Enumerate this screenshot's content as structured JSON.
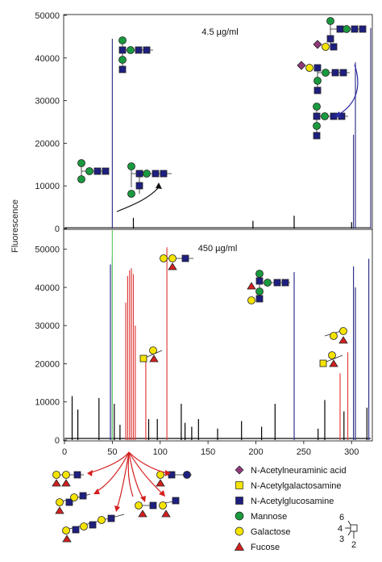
{
  "chart_data": [
    {
      "type": "bar",
      "panel": "top",
      "annotation": "4.5 µg/ml",
      "ylabel": "Fluorescence",
      "ylim": [
        0,
        50000
      ],
      "y_ticks": [
        0,
        10000,
        20000,
        30000,
        40000,
        50000
      ],
      "xlim": [
        0,
        320
      ],
      "grid": false,
      "series": [
        {
          "name": "",
          "color": "#3a3a8a",
          "x": [
            50,
            302,
            304,
            320
          ],
          "y": [
            44500,
            22000,
            39000,
            47000
          ]
        },
        {
          "name": "",
          "color": "#000000",
          "x": [
            72,
            197,
            240,
            300
          ],
          "y": [
            2500,
            1800,
            3000,
            1500
          ]
        }
      ]
    },
    {
      "type": "bar",
      "panel": "bottom",
      "annotation": "450 µg/ml",
      "ylabel": "Fluorescence",
      "ylim": [
        0,
        55000
      ],
      "y_ticks": [
        0,
        10000,
        20000,
        30000,
        40000,
        50000
      ],
      "xlim": [
        0,
        320
      ],
      "x_ticks": [
        0,
        50,
        100,
        150,
        200,
        250,
        300
      ],
      "grid": false,
      "series": [
        {
          "name": "",
          "color": "#33338a",
          "x": [
            48,
            50,
            240,
            302,
            304,
            318
          ],
          "y": [
            46000,
            48000,
            44000,
            45500,
            40000,
            47500
          ]
        },
        {
          "name": "",
          "color": "#e04040",
          "x": [
            64,
            66,
            68,
            70,
            72,
            74,
            85,
            107,
            288,
            296
          ],
          "y": [
            36000,
            43000,
            44500,
            45000,
            43500,
            30000,
            21000,
            50500,
            17500,
            23000
          ]
        },
        {
          "name": "",
          "color": "#66cc66",
          "x": [
            50
          ],
          "y": [
            55000
          ]
        },
        {
          "name": "",
          "color": "#000000",
          "x": [
            8,
            14,
            36,
            52,
            58,
            88,
            97,
            122,
            126,
            133,
            140,
            160,
            185,
            206,
            220,
            265,
            272,
            292,
            316
          ],
          "y": [
            11500,
            8000,
            11000,
            9500,
            4000,
            5500,
            5500,
            9500,
            4500,
            3500,
            5500,
            3000,
            5000,
            3500,
            9500,
            3000,
            10500,
            7500,
            8500
          ]
        }
      ]
    }
  ],
  "legend": [
    {
      "label": "N-Acetylneuraminic acid",
      "shape": "diamond",
      "color": "#8e3a7a"
    },
    {
      "label": "N-Acetylgalactosamine",
      "shape": "square",
      "color": "#f5e400"
    },
    {
      "label": "N-Acetylglucosamine",
      "shape": "square",
      "color": "#1f1f80"
    },
    {
      "label": "Mannose",
      "shape": "circle",
      "color": "#1a9a3e"
    },
    {
      "label": "Galactose",
      "shape": "circle",
      "color": "#f5e400"
    },
    {
      "label": "Fucose",
      "shape": "triangle",
      "color": "#d42020"
    }
  ],
  "linkage_key": {
    "labels": [
      "6",
      "4",
      "3",
      "2"
    ]
  }
}
